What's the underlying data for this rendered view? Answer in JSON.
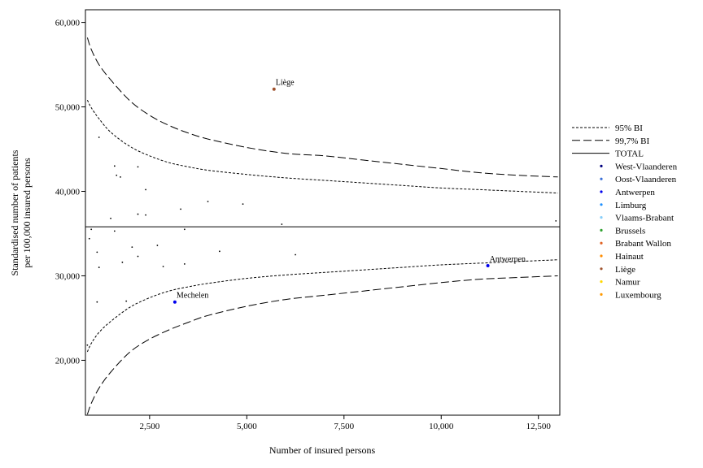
{
  "chart_data": {
    "type": "scatter",
    "subtype": "funnel plot",
    "xlabel": "Number of insured persons",
    "ylabel_lines": [
      "Standardised number of patients",
      "per 100,000 insured persons"
    ],
    "xlim": [
      850,
      13050
    ],
    "ylim": [
      13500,
      61500
    ],
    "x_ticks": [
      {
        "value": 2500,
        "label": "2,500"
      },
      {
        "value": 5000,
        "label": "5,000"
      },
      {
        "value": 7500,
        "label": "7,500"
      },
      {
        "value": 10000,
        "label": "10,000"
      },
      {
        "value": 12500,
        "label": "12,500"
      }
    ],
    "y_ticks": [
      {
        "value": 20000,
        "label": "20,000"
      },
      {
        "value": 30000,
        "label": "30,000"
      },
      {
        "value": 40000,
        "label": "40,000"
      },
      {
        "value": 50000,
        "label": "50,000"
      },
      {
        "value": 60000,
        "label": "60,000"
      }
    ],
    "legend": {
      "position": "right",
      "lines": [
        {
          "key": "ci95",
          "label": "95% BI",
          "dash": "3,2"
        },
        {
          "key": "ci997",
          "label": "99,7% BI",
          "dash": "10,4"
        },
        {
          "key": "total",
          "label": "TOTAL",
          "dash": ""
        }
      ],
      "provinces": [
        {
          "label": "West-Vlaanderen",
          "color": "#00007f"
        },
        {
          "label": "Oost-Vlaanderen",
          "color": "#3a6fd8"
        },
        {
          "label": "Antwerpen",
          "color": "#0000ee"
        },
        {
          "label": "Limburg",
          "color": "#1e90ff"
        },
        {
          "label": "Vlaams-Brabant",
          "color": "#87cefa"
        },
        {
          "label": "Brussels",
          "color": "#2ca02c"
        },
        {
          "label": "Brabant Wallon",
          "color": "#e06020"
        },
        {
          "label": "Hainaut",
          "color": "#ff8c00"
        },
        {
          "label": "Liège",
          "color": "#a0522d"
        },
        {
          "label": "Namur",
          "color": "#ffd700"
        },
        {
          "label": "Luxembourg",
          "color": "#ff9900"
        }
      ]
    },
    "total": 35800,
    "limits": {
      "x": [
        900,
        1000,
        1200,
        1500,
        2000,
        2500,
        3000,
        3500,
        4000,
        5000,
        6000,
        7000,
        8000,
        9000,
        10000,
        11000,
        12000,
        13000
      ],
      "ci95_upper": [
        50800,
        49900,
        48600,
        47000,
        45300,
        44200,
        43400,
        42900,
        42500,
        42000,
        41600,
        41300,
        41000,
        40700,
        40400,
        40200,
        40000,
        39800
      ],
      "ci95_lower": [
        21000,
        22000,
        23300,
        24600,
        26300,
        27400,
        28200,
        28700,
        29100,
        29700,
        30100,
        30400,
        30700,
        31000,
        31300,
        31500,
        31700,
        31900
      ],
      "ci997_upper": [
        58200,
        56800,
        55000,
        53200,
        50700,
        49000,
        47800,
        46900,
        46200,
        45200,
        44500,
        44200,
        43700,
        43200,
        42700,
        42200,
        41900,
        41700
      ],
      "ci997_lower": [
        13600,
        14900,
        16700,
        18600,
        21000,
        22500,
        23600,
        24500,
        25300,
        26400,
        27200,
        27700,
        28200,
        28700,
        29200,
        29600,
        29800,
        30000
      ]
    },
    "labeled_points": [
      {
        "label": "Liège",
        "x": 5700,
        "y": 52100,
        "color": "#a0522d"
      },
      {
        "label": "Antwerpen",
        "x": 11200,
        "y": 31200,
        "color": "#0000ee"
      },
      {
        "label": "Mechelen",
        "x": 3150,
        "y": 26900,
        "color": "#0000ee"
      }
    ],
    "points": [
      {
        "x": 1200,
        "y": 46400
      },
      {
        "x": 1600,
        "y": 43000
      },
      {
        "x": 2200,
        "y": 42900
      },
      {
        "x": 1650,
        "y": 41900
      },
      {
        "x": 1750,
        "y": 41700
      },
      {
        "x": 2400,
        "y": 40200
      },
      {
        "x": 4000,
        "y": 38800
      },
      {
        "x": 4900,
        "y": 38500
      },
      {
        "x": 3300,
        "y": 37900
      },
      {
        "x": 2200,
        "y": 37300
      },
      {
        "x": 2400,
        "y": 37200
      },
      {
        "x": 1500,
        "y": 36800
      },
      {
        "x": 5900,
        "y": 36100
      },
      {
        "x": 12950,
        "y": 36500
      },
      {
        "x": 1000,
        "y": 35500
      },
      {
        "x": 1600,
        "y": 35300
      },
      {
        "x": 3400,
        "y": 35500
      },
      {
        "x": 950,
        "y": 34400
      },
      {
        "x": 2700,
        "y": 33600
      },
      {
        "x": 2050,
        "y": 33400
      },
      {
        "x": 1150,
        "y": 32800
      },
      {
        "x": 4300,
        "y": 32900
      },
      {
        "x": 6250,
        "y": 32500
      },
      {
        "x": 2200,
        "y": 32300
      },
      {
        "x": 1800,
        "y": 31600
      },
      {
        "x": 3400,
        "y": 31400
      },
      {
        "x": 1200,
        "y": 31000
      },
      {
        "x": 2850,
        "y": 31100
      },
      {
        "x": 1150,
        "y": 26900
      },
      {
        "x": 1900,
        "y": 27000
      },
      {
        "x": 900,
        "y": 21800
      }
    ]
  }
}
